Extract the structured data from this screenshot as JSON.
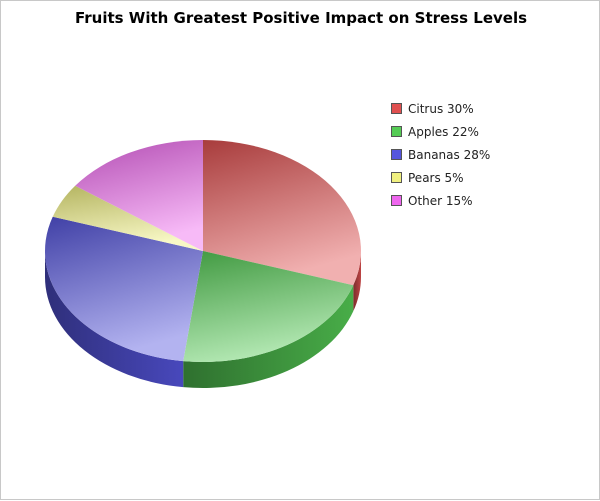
{
  "chart_data": {
    "type": "pie",
    "title": "Fruits With Greatest Positive Impact on Stress Levels",
    "slices": [
      {
        "label": "Citrus",
        "value": 30,
        "legend": "Citrus 30%",
        "color": "#e05050"
      },
      {
        "label": "Apples",
        "value": 22,
        "legend": "Apples 22%",
        "color": "#55cc55"
      },
      {
        "label": "Bananas",
        "value": 28,
        "legend": "Bananas 28%",
        "color": "#5555dd"
      },
      {
        "label": "Pears",
        "value": 5,
        "legend": "Pears 5%",
        "color": "#f0f080"
      },
      {
        "label": "Other",
        "value": 15,
        "legend": "Other 15%",
        "color": "#ee66ee"
      }
    ],
    "legend_position": "right",
    "style": "3d"
  }
}
